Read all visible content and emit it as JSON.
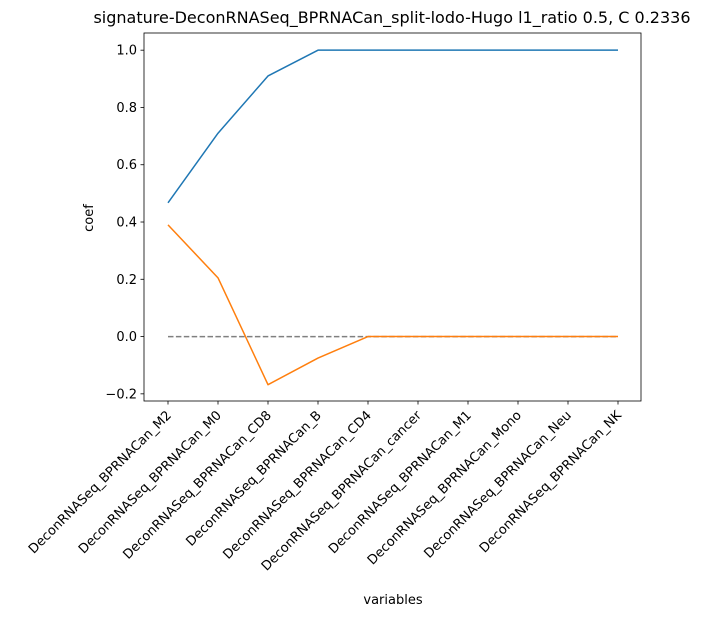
{
  "chart_data": {
    "type": "line",
    "title": "signature-DeconRNASeq_BPRNACan_split-lodo-Hugo l1_ratio 0.5, C 0.2336",
    "xlabel": "variables",
    "ylabel": "coef",
    "categories": [
      "DeconRNASeq_BPRNACan_M2",
      "DeconRNASeq_BPRNACan_M0",
      "DeconRNASeq_BPRNACan_CD8",
      "DeconRNASeq_BPRNACan_B",
      "DeconRNASeq_BPRNACan_CD4",
      "DeconRNASeq_BPRNACan_cancer",
      "DeconRNASeq_BPRNACan_M1",
      "DeconRNASeq_BPRNACan_Mono",
      "DeconRNASeq_BPRNACan_Neu",
      "DeconRNASeq_BPRNACan_NK"
    ],
    "series": [
      {
        "color": "#1f77b4",
        "values": [
          0.467,
          0.71,
          0.91,
          1.0,
          1.0,
          1.0,
          1.0,
          1.0,
          1.0,
          1.0
        ]
      },
      {
        "color": "#ff7f0e",
        "values": [
          0.39,
          0.205,
          -0.168,
          -0.075,
          0.0,
          0.0,
          0.0,
          0.0,
          0.0,
          0.0
        ]
      }
    ],
    "reference_line": {
      "value": 0.0,
      "style": "dashed",
      "color": "#808080"
    },
    "ylim": [
      -0.225,
      1.06
    ],
    "yticks": [
      -0.2,
      0.0,
      0.2,
      0.4,
      0.6,
      0.8,
      1.0
    ],
    "ytick_labels": [
      "−0.2",
      "0.0",
      "0.2",
      "0.4",
      "0.6",
      "0.8",
      "1.0"
    ],
    "grid": false,
    "legend": "none"
  }
}
